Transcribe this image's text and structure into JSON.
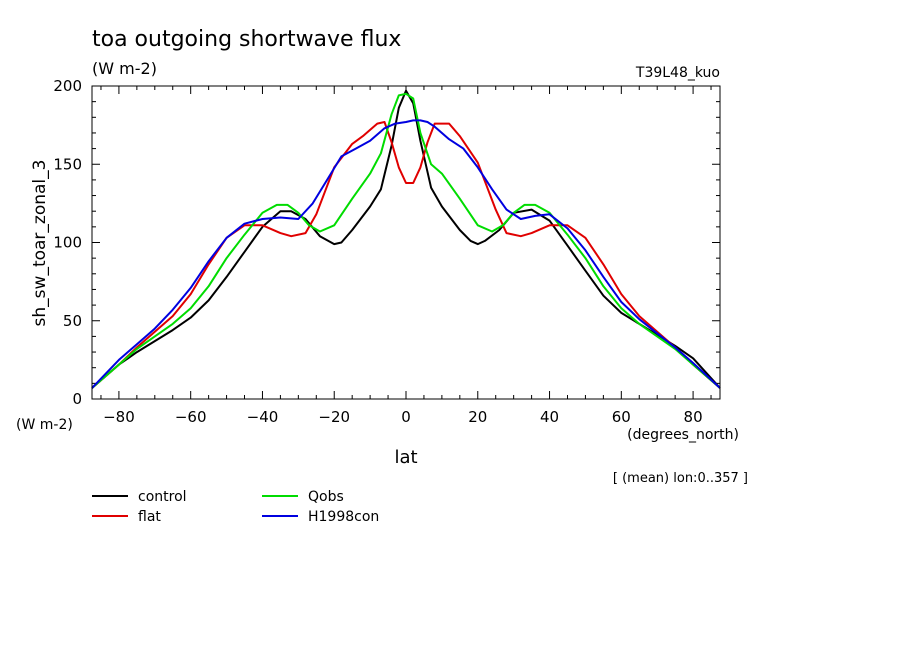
{
  "chart_data": {
    "type": "line",
    "title": "toa outgoing shortwave flux",
    "units": "(W m-2)",
    "run_label": "T39L48_kuo",
    "ylabel": "sh_sw_toar_zonal_3",
    "y_units": "(W m-2)",
    "xlabel": "lat",
    "x_units": "(degrees_north)",
    "note": "[ (mean) lon:0..357 ]",
    "xlim": [
      -87.5,
      87.5
    ],
    "ylim": [
      0,
      200
    ],
    "x_ticks": [
      -80,
      -60,
      -40,
      -20,
      0,
      20,
      40,
      60,
      80
    ],
    "y_ticks": [
      0,
      50,
      100,
      150,
      200
    ],
    "series": [
      {
        "name": "control",
        "color": "#000000",
        "x": [
          -87.5,
          -80,
          -75,
          -70,
          -65,
          -60,
          -55,
          -50,
          -45,
          -40,
          -35,
          -32,
          -28,
          -24,
          -20,
          -18,
          -15,
          -10,
          -7,
          -4,
          -2,
          0,
          2,
          4,
          7,
          10,
          15,
          18,
          20,
          22,
          26,
          30,
          35,
          40,
          45,
          50,
          55,
          60,
          65,
          70,
          75,
          80,
          87.5
        ],
        "values": [
          7,
          22,
          30,
          37,
          44,
          52,
          63,
          78,
          94,
          110,
          120,
          120,
          115,
          104,
          99,
          100,
          108,
          123,
          134,
          162,
          186,
          197,
          189,
          165,
          135,
          123,
          108,
          101,
          99,
          101,
          108,
          119,
          121,
          114,
          98,
          82,
          66,
          55,
          48,
          41,
          34,
          26,
          7
        ]
      },
      {
        "name": "flat",
        "color": "#e00000",
        "x": [
          -87.5,
          -80,
          -75,
          -70,
          -65,
          -60,
          -55,
          -50,
          -45,
          -40,
          -35,
          -32,
          -28,
          -25,
          -20,
          -15,
          -12,
          -8,
          -6,
          -4,
          -2,
          0,
          2,
          4,
          6,
          8,
          12,
          15,
          20,
          25,
          28,
          32,
          35,
          40,
          45,
          50,
          55,
          60,
          65,
          70,
          75,
          80,
          87.5
        ],
        "values": [
          7,
          22,
          33,
          43,
          53,
          67,
          86,
          103,
          111,
          111,
          106,
          104,
          106,
          118,
          148,
          163,
          168,
          176,
          177,
          164,
          148,
          138,
          138,
          148,
          164,
          176,
          176,
          168,
          151,
          121,
          106,
          104,
          106,
          111,
          111,
          103,
          86,
          67,
          53,
          43,
          33,
          22,
          7
        ]
      },
      {
        "name": "Qobs",
        "color": "#00dc00",
        "x": [
          -87.5,
          -80,
          -75,
          -70,
          -65,
          -60,
          -55,
          -50,
          -45,
          -40,
          -36,
          -33,
          -30,
          -27,
          -24,
          -20,
          -15,
          -10,
          -7,
          -4,
          -2,
          0,
          2,
          4,
          7,
          10,
          15,
          20,
          24,
          27,
          30,
          33,
          36,
          40,
          45,
          50,
          55,
          60,
          65,
          70,
          75,
          80,
          87.5
        ],
        "values": [
          7,
          22,
          32,
          40,
          48,
          58,
          72,
          90,
          105,
          119,
          124,
          124,
          119,
          111,
          107,
          111,
          128,
          144,
          157,
          182,
          194,
          195,
          192,
          170,
          150,
          144,
          128,
          111,
          107,
          111,
          119,
          124,
          124,
          119,
          105,
          90,
          72,
          58,
          48,
          40,
          32,
          22,
          7
        ]
      },
      {
        "name": "H1998con",
        "color": "#0000e0",
        "x": [
          -87.5,
          -80,
          -75,
          -70,
          -65,
          -60,
          -55,
          -50,
          -45,
          -40,
          -35,
          -30,
          -26,
          -22,
          -18,
          -14,
          -10,
          -6,
          -3,
          0,
          2,
          4,
          6,
          8,
          12,
          16,
          20,
          24,
          28,
          32,
          36,
          40,
          45,
          50,
          55,
          60,
          65,
          70,
          75,
          80,
          87.5
        ],
        "values": [
          7,
          25,
          35,
          45,
          57,
          71,
          88,
          103,
          112,
          115,
          116,
          115,
          125,
          140,
          155,
          160,
          165,
          173,
          176,
          177,
          178,
          178,
          177,
          174,
          166,
          160,
          148,
          134,
          121,
          115,
          117,
          118,
          109,
          95,
          78,
          62,
          51,
          42,
          33,
          23,
          7
        ]
      }
    ]
  }
}
